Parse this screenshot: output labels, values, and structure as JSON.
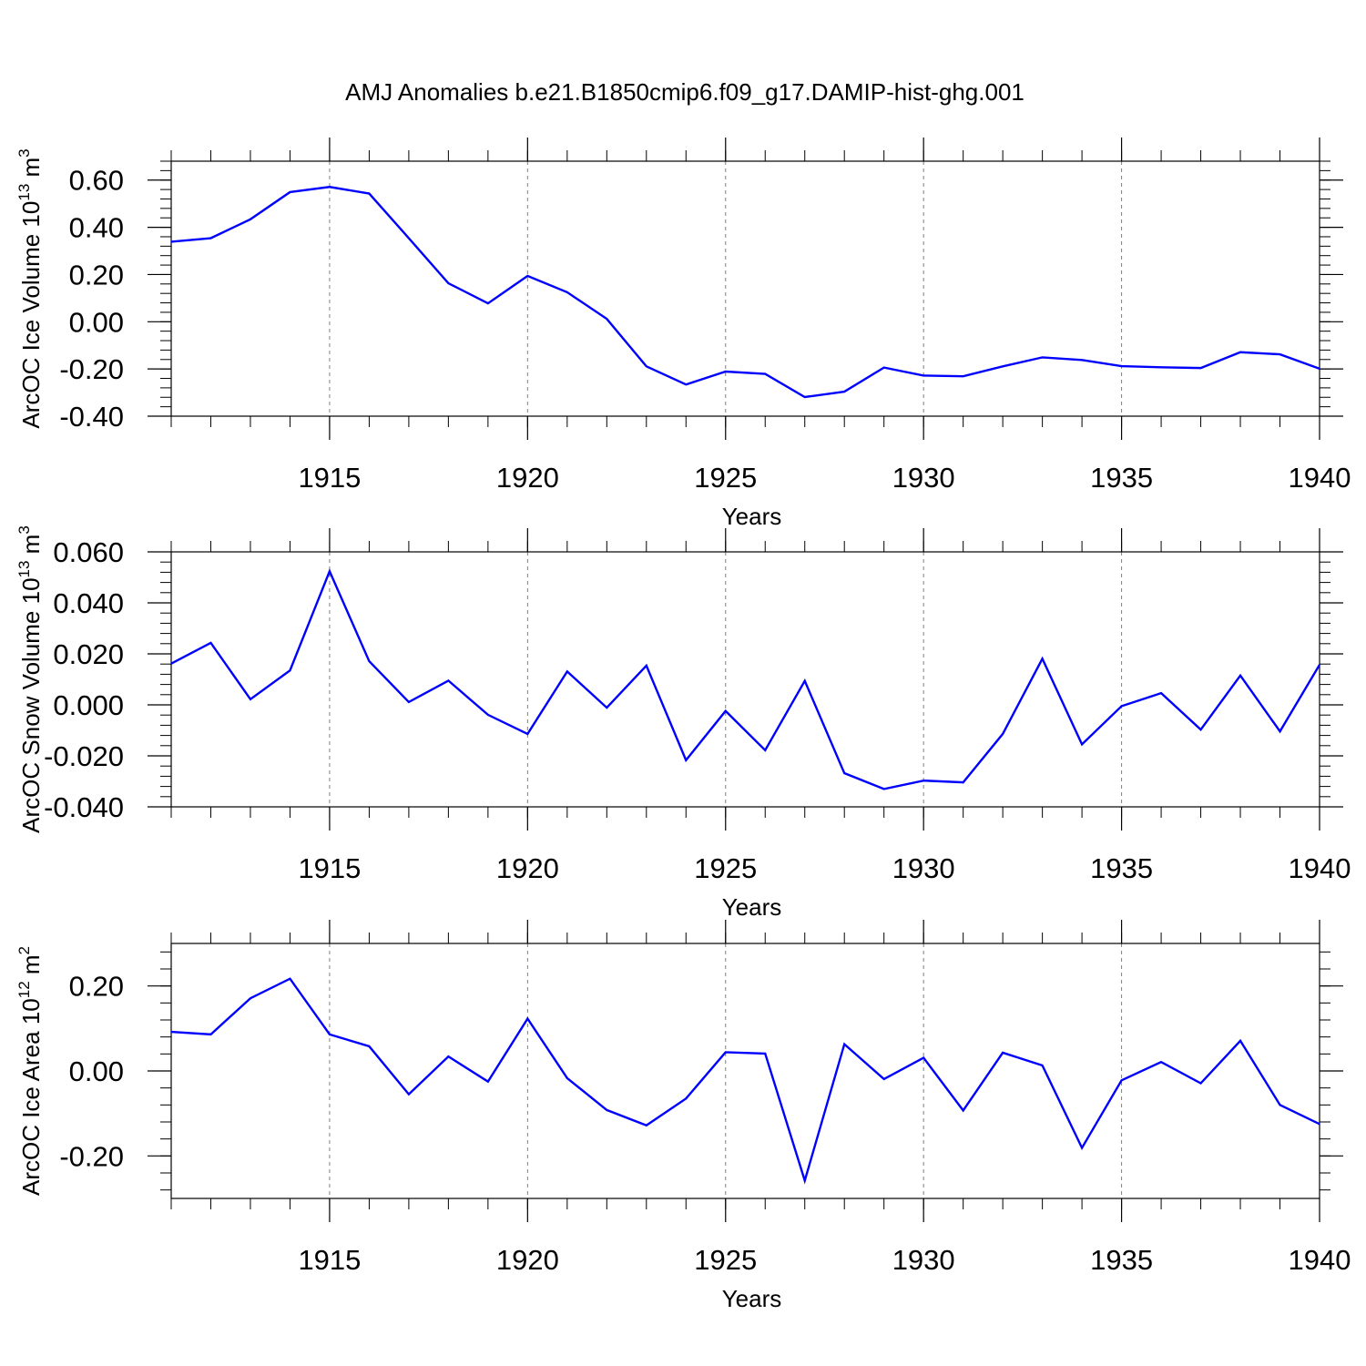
{
  "figure_title": "AMJ Anomalies b.e21.B1850cmip6.f09_g17.DAMIP-hist-ghg.001",
  "colors": {
    "series": "#0000ff",
    "axes": "#000000",
    "grid": "#7f7f7f"
  },
  "chart_data": [
    {
      "type": "line",
      "panel": "ice-volume",
      "ylabel_main": "ArcOC Ice Volume 10",
      "ylabel_exp": "13",
      "ylabel_unit": " m",
      "ylabel_unit_exp": "3",
      "xlabel": "Years",
      "xlim": [
        1911,
        1940
      ],
      "ylim": [
        -0.4,
        0.68
      ],
      "x_ticks": [
        1915,
        1920,
        1925,
        1930,
        1935,
        1940
      ],
      "x_tick_labels": [
        "1915",
        "1920",
        "1925",
        "1930",
        "1935",
        "1940"
      ],
      "y_ticks": [
        -0.4,
        -0.2,
        0.0,
        0.2,
        0.4,
        0.6
      ],
      "y_tick_labels": [
        "-0.40",
        "-0.20",
        "0.00",
        "0.20",
        "0.40",
        "0.60"
      ],
      "grid": "vertical dashed at major x ticks",
      "x": [
        1911,
        1912,
        1913,
        1914,
        1915,
        1916,
        1917,
        1918,
        1919,
        1920,
        1921,
        1922,
        1923,
        1924,
        1925,
        1926,
        1927,
        1928,
        1929,
        1930,
        1931,
        1932,
        1933,
        1934,
        1935,
        1936,
        1937,
        1938,
        1939,
        1940
      ],
      "values": [
        0.339,
        0.354,
        0.434,
        0.549,
        0.571,
        0.543,
        0.354,
        0.163,
        0.078,
        0.194,
        0.125,
        0.012,
        -0.189,
        -0.266,
        -0.211,
        -0.221,
        -0.319,
        -0.296,
        -0.194,
        -0.228,
        -0.231,
        -0.189,
        -0.151,
        -0.162,
        -0.188,
        -0.193,
        -0.196,
        -0.129,
        -0.138,
        -0.199
      ]
    },
    {
      "type": "line",
      "panel": "snow-volume",
      "ylabel_main": "ArcOC Snow Volume 10",
      "ylabel_exp": "13",
      "ylabel_unit": " m",
      "ylabel_unit_exp": "3",
      "xlabel": "Years",
      "xlim": [
        1911,
        1940
      ],
      "ylim": [
        -0.04,
        0.06
      ],
      "x_ticks": [
        1915,
        1920,
        1925,
        1930,
        1935,
        1940
      ],
      "x_tick_labels": [
        "1915",
        "1920",
        "1925",
        "1930",
        "1935",
        "1940"
      ],
      "y_ticks": [
        -0.04,
        -0.02,
        0.0,
        0.02,
        0.04,
        0.06
      ],
      "y_tick_labels": [
        "-0.040",
        "-0.020",
        "0.000",
        "0.020",
        "0.040",
        "0.060"
      ],
      "grid": "vertical dashed at major x ticks",
      "x": [
        1911,
        1912,
        1913,
        1914,
        1915,
        1916,
        1917,
        1918,
        1919,
        1920,
        1921,
        1922,
        1923,
        1924,
        1925,
        1926,
        1927,
        1928,
        1929,
        1930,
        1931,
        1932,
        1933,
        1934,
        1935,
        1936,
        1937,
        1938,
        1939,
        1940
      ],
      "values": [
        0.0162,
        0.0243,
        0.0022,
        0.0135,
        0.0524,
        0.0171,
        0.0011,
        0.0095,
        -0.0039,
        -0.0114,
        0.0131,
        -0.0011,
        0.0154,
        -0.0217,
        -0.0024,
        -0.0178,
        0.0094,
        -0.0268,
        -0.033,
        -0.0297,
        -0.0304,
        -0.0114,
        0.0181,
        -0.0155,
        -0.0005,
        0.0046,
        -0.0097,
        0.0115,
        -0.0104,
        0.0157
      ]
    },
    {
      "type": "line",
      "panel": "ice-area",
      "ylabel_main": "ArcOC Ice Area 10",
      "ylabel_exp": "12",
      "ylabel_unit": " m",
      "ylabel_unit_exp": "2",
      "xlabel": "Years",
      "xlim": [
        1911,
        1940
      ],
      "ylim": [
        -0.3,
        0.3
      ],
      "x_ticks": [
        1915,
        1920,
        1925,
        1930,
        1935,
        1940
      ],
      "x_tick_labels": [
        "1915",
        "1920",
        "1925",
        "1930",
        "1935",
        "1940"
      ],
      "y_ticks": [
        -0.2,
        0.0,
        0.2
      ],
      "y_tick_labels": [
        "-0.20",
        "0.00",
        "0.20"
      ],
      "grid": "vertical dashed at major x ticks",
      "x": [
        1911,
        1912,
        1913,
        1914,
        1915,
        1916,
        1917,
        1918,
        1919,
        1920,
        1921,
        1922,
        1923,
        1924,
        1925,
        1926,
        1927,
        1928,
        1929,
        1930,
        1931,
        1932,
        1933,
        1934,
        1935,
        1936,
        1937,
        1938,
        1939,
        1940
      ],
      "values": [
        0.092,
        0.086,
        0.171,
        0.217,
        0.086,
        0.058,
        -0.055,
        0.034,
        -0.025,
        0.123,
        -0.017,
        -0.092,
        -0.128,
        -0.065,
        0.044,
        0.041,
        -0.258,
        0.063,
        -0.019,
        0.031,
        -0.093,
        0.043,
        0.013,
        -0.181,
        -0.022,
        0.021,
        -0.029,
        0.071,
        -0.08,
        -0.125
      ]
    }
  ]
}
